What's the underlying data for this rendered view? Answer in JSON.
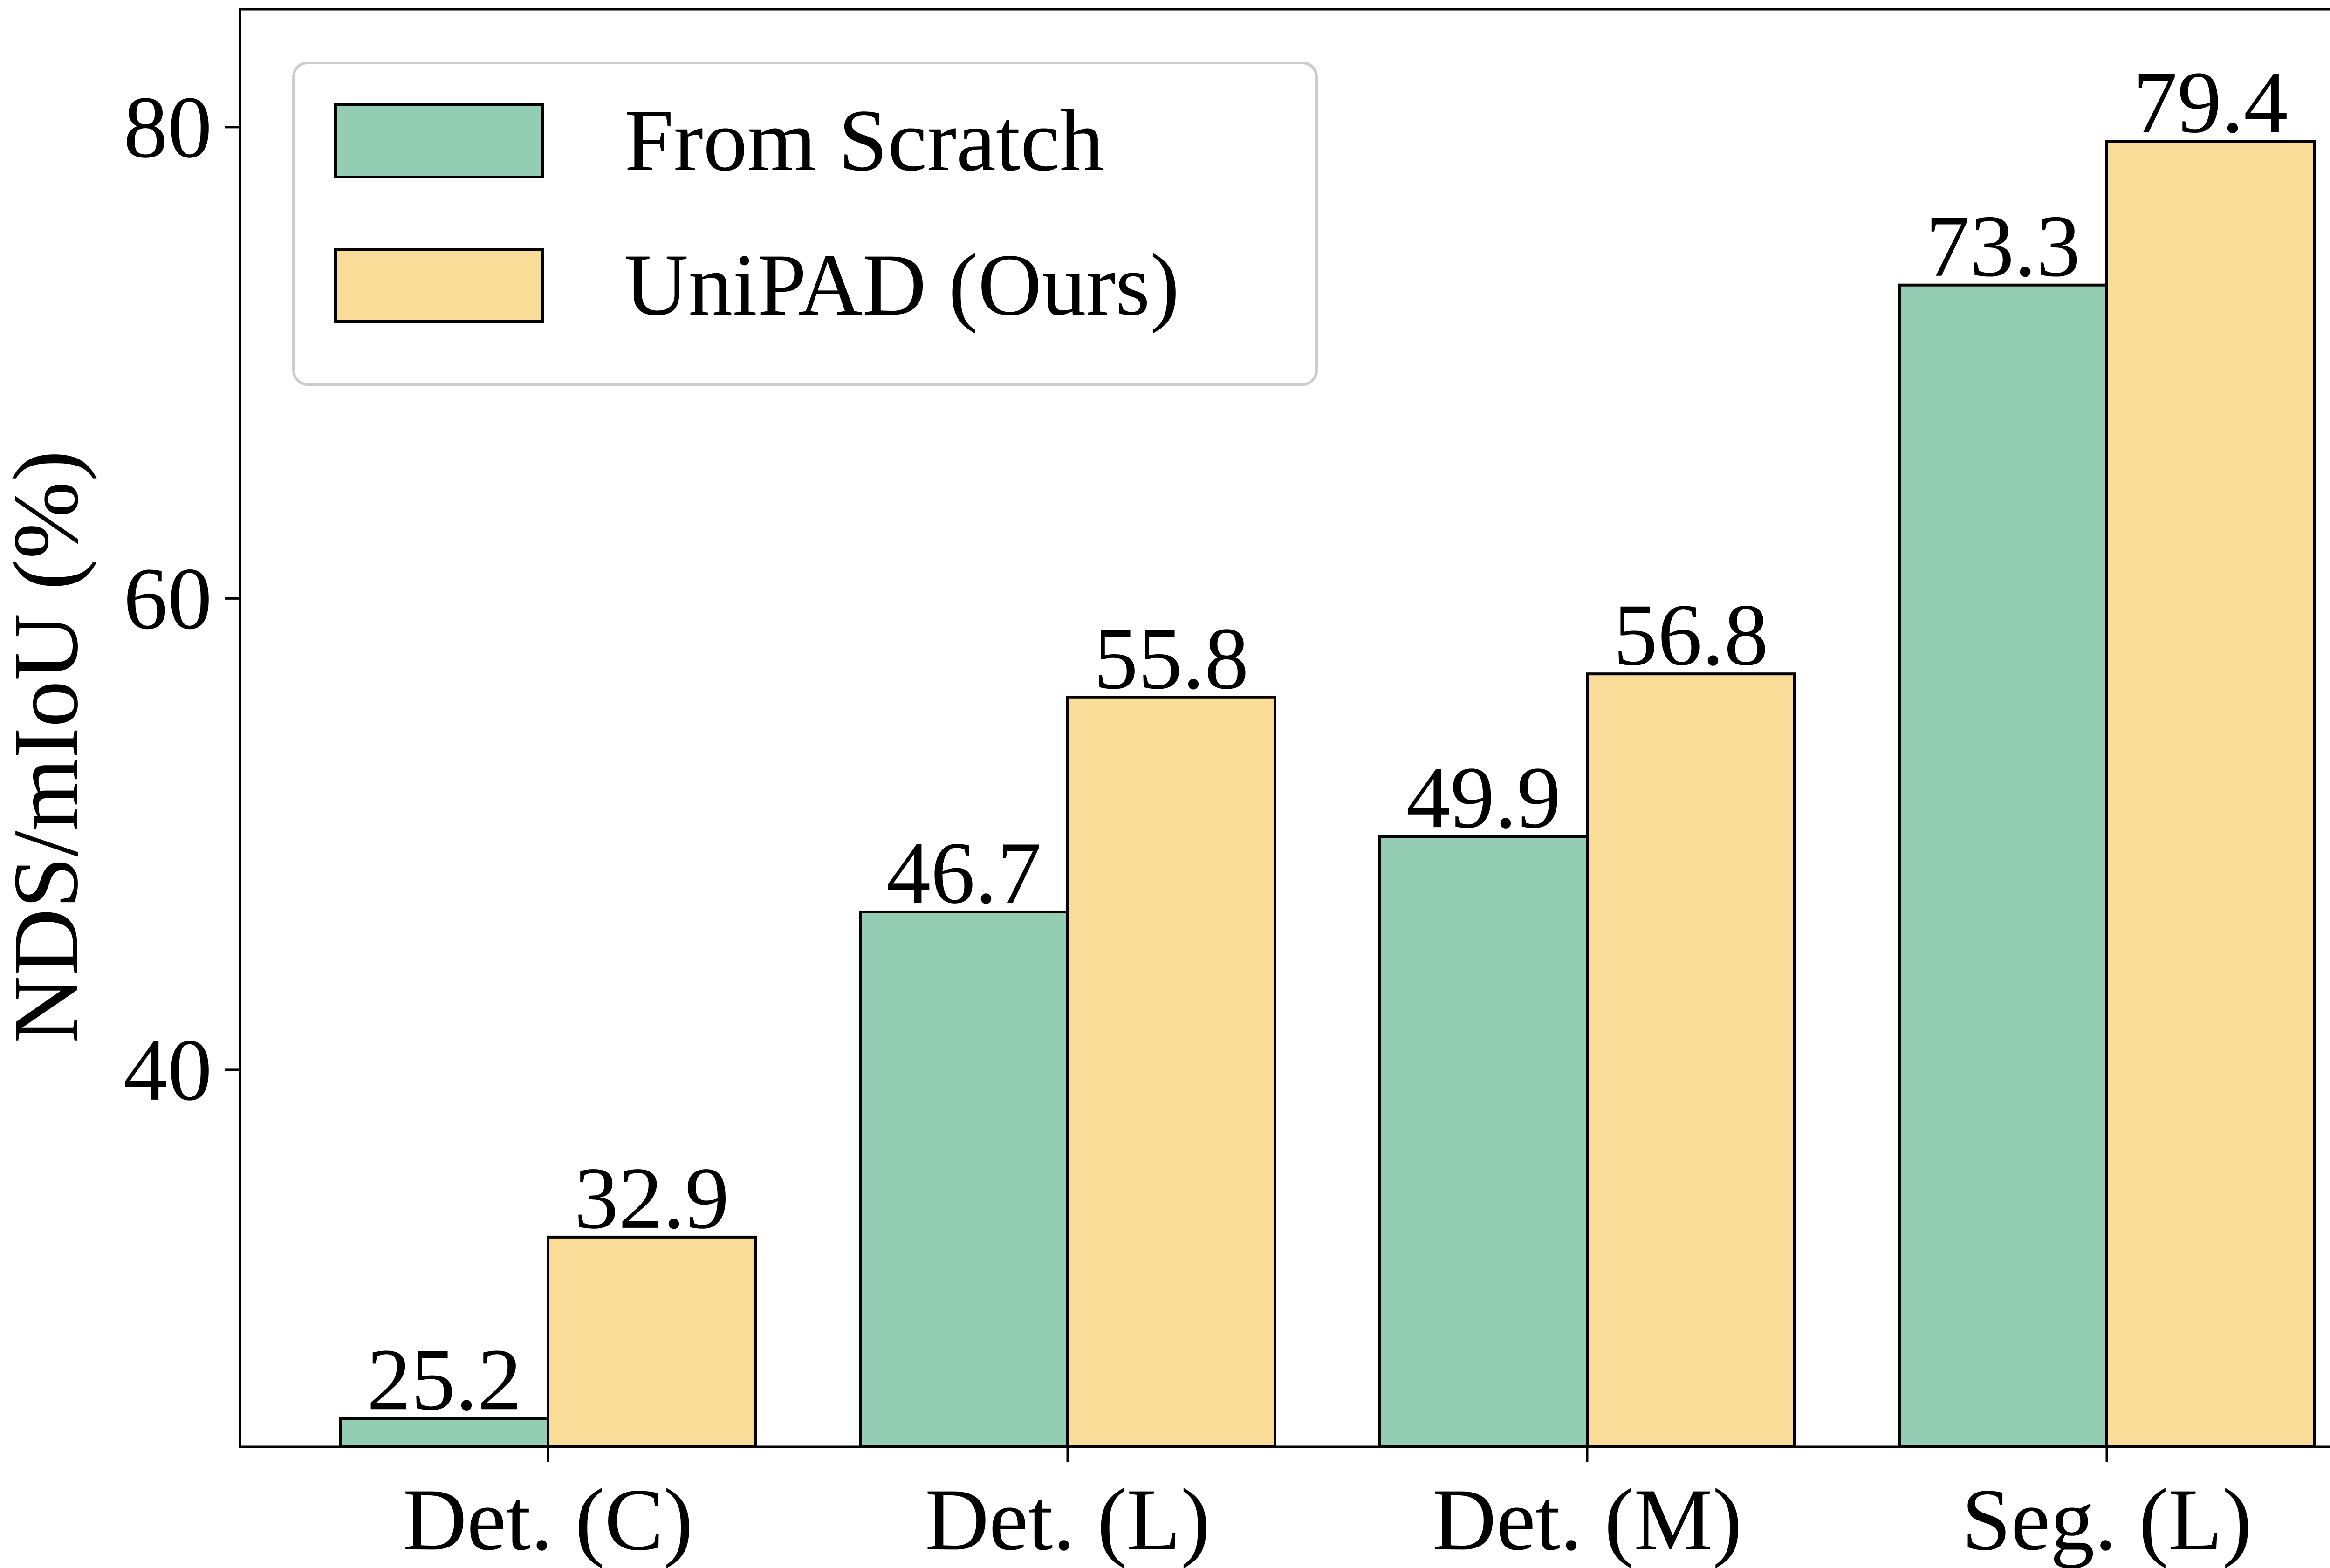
{
  "chart_data": {
    "type": "bar",
    "title": "",
    "xlabel": "",
    "ylabel": "NDS/mIoU (%)",
    "categories": [
      "Det. (C)",
      "Det. (L)",
      "Det. (M)",
      "Seg. (L)"
    ],
    "series": [
      {
        "name": "From Scratch",
        "values": [
          25.2,
          46.7,
          49.9,
          73.3
        ],
        "color": "#93CEB4"
      },
      {
        "name": "UniPAD (Ours)",
        "values": [
          32.9,
          55.8,
          56.8,
          79.4
        ],
        "color": "#F9DC98"
      }
    ],
    "value_labels": {
      "From Scratch": [
        "25.2",
        "46.7",
        "49.9",
        "73.3"
      ],
      "UniPAD (Ours)": [
        "32.9",
        "55.8",
        "56.8",
        "79.4"
      ]
    },
    "ylim": [
      24,
      85
    ],
    "yticks": [
      40,
      60,
      80
    ],
    "ytick_labels": [
      "40",
      "60",
      "80"
    ],
    "grid": false,
    "legend_position": "top-left",
    "colors": {
      "edge": "#000000",
      "legend_border": "#cccccc",
      "background": "#ffffff"
    }
  }
}
